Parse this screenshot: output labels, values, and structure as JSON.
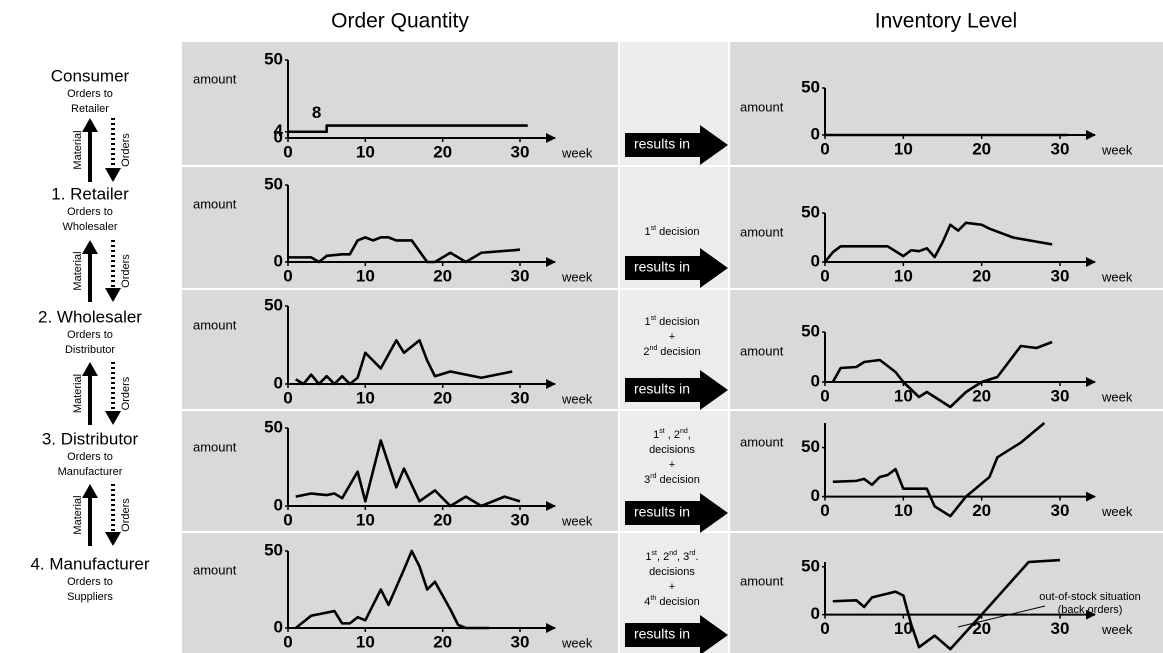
{
  "headers": {
    "left": "Order Quantity",
    "right": "Inventory Level"
  },
  "stages": [
    {
      "name": "Consumer",
      "sub": [
        "Orders to",
        "Retailer"
      ]
    },
    {
      "name": "1. Retailer",
      "sub": [
        "Orders to",
        "Wholesaler"
      ]
    },
    {
      "name": "2. Wholesaler",
      "sub": [
        "Orders to",
        "Distributor"
      ]
    },
    {
      "name": "3. Distributor",
      "sub": [
        "Orders to",
        "Manufacturer"
      ]
    },
    {
      "name": "4. Manufacturer",
      "sub": [
        "Orders to",
        "Suppliers"
      ]
    }
  ],
  "flow_labels": {
    "material": "Material",
    "orders": "Orders"
  },
  "results_label": "results in",
  "decisions": [
    [],
    [
      [
        "1",
        "st",
        " decision"
      ]
    ],
    [
      [
        "1",
        "st",
        " decision"
      ],
      [
        "+"
      ],
      [
        "2",
        "nd",
        " decision"
      ]
    ],
    [
      [
        "1",
        "st",
        " , 2",
        "nd",
        ","
      ],
      [
        "decisions"
      ],
      [
        "+"
      ],
      [
        "3",
        "rd",
        " decision"
      ]
    ],
    [
      [
        "1",
        "st",
        ", 2",
        "nd",
        ", 3",
        "rd",
        "."
      ],
      [
        "decisions"
      ],
      [
        "+"
      ],
      [
        "4",
        "th",
        " decision"
      ]
    ]
  ],
  "chart_data": [
    {
      "type": "line",
      "ylabel": "amount",
      "xlabel": "week",
      "xlim": [
        0,
        30
      ],
      "ylim": [
        0,
        50
      ],
      "xticks": [
        0,
        10,
        20,
        30
      ],
      "yticks": [
        0,
        4,
        50
      ],
      "color": "#000000",
      "x": [
        0,
        5,
        5,
        31
      ],
      "values": [
        4,
        4,
        8,
        8
      ],
      "value_labels": [
        null,
        null,
        "8",
        null
      ]
    },
    {
      "type": "line",
      "ylabel": "amount",
      "xlabel": "week",
      "xlim": [
        0,
        30
      ],
      "ylim": [
        0,
        50
      ],
      "xticks": [
        0,
        10,
        20,
        30
      ],
      "yticks": [
        0,
        50
      ],
      "color": "#000000",
      "x": [
        0,
        31
      ],
      "values": [
        0,
        0
      ]
    },
    {
      "type": "line",
      "ylabel": "amount",
      "xlabel": "week",
      "xlim": [
        0,
        30
      ],
      "ylim": [
        0,
        50
      ],
      "xticks": [
        0,
        10,
        20,
        30
      ],
      "yticks": [
        0,
        50
      ],
      "color": "#000000",
      "x": [
        0,
        3,
        4,
        5,
        7,
        8,
        9,
        10,
        11,
        12,
        13,
        14,
        16,
        18,
        19,
        21,
        23,
        25,
        30
      ],
      "values": [
        3,
        3,
        0,
        4,
        5,
        5,
        14,
        16,
        14,
        16,
        16,
        14,
        14,
        0,
        0,
        6,
        0,
        6,
        8
      ]
    },
    {
      "type": "line",
      "ylabel": "amount",
      "xlabel": "week",
      "xlim": [
        0,
        30
      ],
      "ylim": [
        0,
        50
      ],
      "xticks": [
        0,
        10,
        20,
        30
      ],
      "yticks": [
        0,
        50
      ],
      "color": "#000000",
      "x": [
        0,
        1,
        2,
        8,
        10,
        11,
        12,
        13,
        14,
        15,
        16,
        17,
        18,
        20,
        21,
        24,
        29
      ],
      "values": [
        0,
        10,
        16,
        16,
        6,
        12,
        11,
        14,
        5,
        20,
        38,
        32,
        40,
        38,
        34,
        25,
        18
      ]
    },
    {
      "type": "line",
      "ylabel": "amount",
      "xlabel": "week",
      "xlim": [
        0,
        30
      ],
      "ylim": [
        0,
        50
      ],
      "xticks": [
        0,
        10,
        20,
        30
      ],
      "yticks": [
        0,
        50
      ],
      "color": "#000000",
      "x": [
        1,
        2,
        3,
        4,
        5,
        6,
        7,
        8,
        9,
        10,
        12,
        14,
        15,
        17,
        18,
        19,
        21,
        25,
        29
      ],
      "values": [
        3,
        0,
        6,
        0,
        5,
        0,
        5,
        0,
        4,
        20,
        10,
        28,
        20,
        28,
        15,
        5,
        8,
        4,
        8
      ]
    },
    {
      "type": "line",
      "ylabel": "amount",
      "xlabel": "week",
      "xlim": [
        0,
        30
      ],
      "ylim": [
        -25,
        50
      ],
      "xticks": [
        0,
        10,
        20,
        30
      ],
      "yticks": [
        0,
        50
      ],
      "color": "#000000",
      "x": [
        1,
        2,
        4,
        5,
        7,
        9,
        10,
        12,
        13,
        16,
        18,
        20,
        22,
        25,
        27,
        29
      ],
      "values": [
        0,
        14,
        15,
        20,
        22,
        10,
        0,
        -15,
        -10,
        -25,
        -10,
        0,
        5,
        36,
        34,
        40
      ]
    },
    {
      "type": "line",
      "ylabel": "amount",
      "xlabel": "week",
      "xlim": [
        0,
        30
      ],
      "ylim": [
        0,
        50
      ],
      "xticks": [
        0,
        10,
        20,
        30
      ],
      "yticks": [
        0,
        50
      ],
      "color": "#000000",
      "x": [
        1,
        3,
        5,
        6,
        7,
        9,
        10,
        12,
        14,
        15,
        17,
        19,
        21,
        23,
        25,
        28,
        30
      ],
      "values": [
        6,
        8,
        7,
        8,
        5,
        22,
        3,
        42,
        12,
        24,
        3,
        10,
        0,
        6,
        0,
        6,
        3
      ]
    },
    {
      "type": "line",
      "ylabel": "amount",
      "xlabel": "week",
      "xlim": [
        0,
        30
      ],
      "ylim": [
        -30,
        75
      ],
      "xticks": [
        0,
        10,
        20,
        30
      ],
      "yticks": [
        0,
        50
      ],
      "color": "#000000",
      "x": [
        1,
        4,
        5,
        6,
        7,
        8,
        9,
        10,
        13,
        14,
        16,
        18,
        21,
        22,
        25,
        28
      ],
      "values": [
        15,
        16,
        18,
        12,
        20,
        22,
        28,
        8,
        8,
        -10,
        -20,
        0,
        20,
        40,
        55,
        75
      ]
    },
    {
      "type": "line",
      "ylabel": "amount",
      "xlabel": "week",
      "xlim": [
        0,
        30
      ],
      "ylim": [
        0,
        50
      ],
      "xticks": [
        0,
        10,
        20,
        30
      ],
      "yticks": [
        0,
        50
      ],
      "color": "#000000",
      "x": [
        1,
        2,
        3,
        5,
        6,
        7,
        8,
        9,
        10,
        12,
        13,
        15,
        16,
        17,
        18,
        19,
        21,
        22,
        23,
        26
      ],
      "values": [
        0,
        4,
        8,
        10,
        11,
        3,
        3,
        7,
        5,
        25,
        15,
        38,
        50,
        40,
        25,
        30,
        12,
        2,
        0,
        0
      ]
    },
    {
      "type": "line",
      "ylabel": "amount",
      "xlabel": "week",
      "xlim": [
        0,
        30
      ],
      "ylim": [
        -38,
        55
      ],
      "xticks": [
        0,
        10,
        20,
        30
      ],
      "yticks": [
        0,
        50
      ],
      "color": "#000000",
      "x": [
        1,
        4,
        5,
        6,
        8,
        9,
        10,
        11,
        12,
        14,
        16,
        20,
        26,
        30
      ],
      "values": [
        14,
        15,
        8,
        18,
        22,
        24,
        20,
        -10,
        -34,
        -22,
        -36,
        0,
        55,
        57
      ],
      "annotation": [
        "out-of-stock situation",
        "(back orders)"
      ]
    }
  ]
}
